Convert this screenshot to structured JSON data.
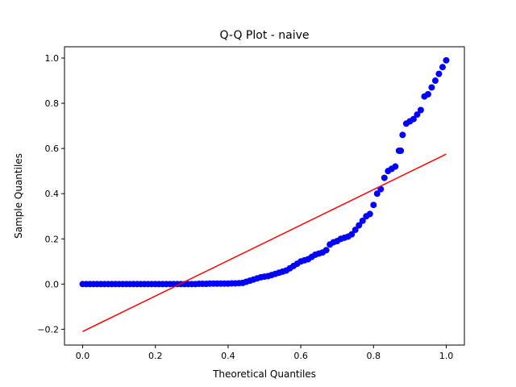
{
  "chart_data": {
    "type": "scatter",
    "title": "Q-Q Plot - naive",
    "xlabel": "Theoretical Quantiles",
    "ylabel": "Sample Quantiles",
    "xlim": [
      -0.05,
      1.05
    ],
    "ylim": [
      -0.27,
      1.05
    ],
    "x_ticks": [
      0.0,
      0.2,
      0.4,
      0.6,
      0.8,
      1.0
    ],
    "x_tick_labels": [
      "0.0",
      "0.2",
      "0.4",
      "0.6",
      "0.8",
      "1.0"
    ],
    "y_ticks": [
      -0.2,
      0.0,
      0.2,
      0.4,
      0.6,
      0.8,
      1.0
    ],
    "y_tick_labels": [
      "−0.2",
      "0.0",
      "0.2",
      "0.4",
      "0.6",
      "0.8",
      "1.0"
    ],
    "grid": false,
    "series": [
      {
        "kind": "points",
        "color": "#0000ff",
        "points": [
          [
            0.0,
            0.0
          ],
          [
            0.01,
            0.0
          ],
          [
            0.02,
            0.0
          ],
          [
            0.03,
            0.0
          ],
          [
            0.04,
            0.0
          ],
          [
            0.05,
            0.0
          ],
          [
            0.06,
            0.0
          ],
          [
            0.07,
            0.0
          ],
          [
            0.08,
            0.0
          ],
          [
            0.09,
            0.0
          ],
          [
            0.1,
            0.0
          ],
          [
            0.11,
            0.0
          ],
          [
            0.12,
            0.0
          ],
          [
            0.13,
            0.0
          ],
          [
            0.14,
            0.0
          ],
          [
            0.15,
            0.0
          ],
          [
            0.16,
            0.0
          ],
          [
            0.17,
            0.0
          ],
          [
            0.18,
            0.0
          ],
          [
            0.19,
            0.0
          ],
          [
            0.2,
            0.0
          ],
          [
            0.21,
            0.0
          ],
          [
            0.22,
            0.0
          ],
          [
            0.23,
            0.0
          ],
          [
            0.24,
            0.0
          ],
          [
            0.25,
            0.0
          ],
          [
            0.26,
            0.0
          ],
          [
            0.27,
            0.0
          ],
          [
            0.28,
            0.0
          ],
          [
            0.29,
            0.0
          ],
          [
            0.3,
            0.0
          ],
          [
            0.31,
            0.0
          ],
          [
            0.32,
            0.001
          ],
          [
            0.33,
            0.001
          ],
          [
            0.34,
            0.001
          ],
          [
            0.35,
            0.002
          ],
          [
            0.36,
            0.002
          ],
          [
            0.37,
            0.002
          ],
          [
            0.38,
            0.002
          ],
          [
            0.39,
            0.002
          ],
          [
            0.4,
            0.002
          ],
          [
            0.41,
            0.003
          ],
          [
            0.42,
            0.003
          ],
          [
            0.43,
            0.004
          ],
          [
            0.44,
            0.005
          ],
          [
            0.45,
            0.01
          ],
          [
            0.46,
            0.015
          ],
          [
            0.47,
            0.02
          ],
          [
            0.48,
            0.025
          ],
          [
            0.49,
            0.03
          ],
          [
            0.5,
            0.033
          ],
          [
            0.51,
            0.035
          ],
          [
            0.52,
            0.04
          ],
          [
            0.53,
            0.045
          ],
          [
            0.54,
            0.05
          ],
          [
            0.55,
            0.055
          ],
          [
            0.56,
            0.06
          ],
          [
            0.57,
            0.07
          ],
          [
            0.58,
            0.08
          ],
          [
            0.59,
            0.09
          ],
          [
            0.6,
            0.1
          ],
          [
            0.61,
            0.105
          ],
          [
            0.62,
            0.11
          ],
          [
            0.63,
            0.12
          ],
          [
            0.64,
            0.13
          ],
          [
            0.65,
            0.135
          ],
          [
            0.66,
            0.14
          ],
          [
            0.67,
            0.15
          ],
          [
            0.68,
            0.175
          ],
          [
            0.69,
            0.185
          ],
          [
            0.7,
            0.19
          ],
          [
            0.71,
            0.2
          ],
          [
            0.72,
            0.205
          ],
          [
            0.73,
            0.21
          ],
          [
            0.74,
            0.22
          ],
          [
            0.75,
            0.24
          ],
          [
            0.76,
            0.26
          ],
          [
            0.77,
            0.28
          ],
          [
            0.78,
            0.3
          ],
          [
            0.79,
            0.31
          ],
          [
            0.8,
            0.35
          ],
          [
            0.81,
            0.4
          ],
          [
            0.82,
            0.42
          ],
          [
            0.83,
            0.47
          ],
          [
            0.84,
            0.5
          ],
          [
            0.85,
            0.51
          ],
          [
            0.86,
            0.52
          ],
          [
            0.87,
            0.59
          ],
          [
            0.875,
            0.59
          ],
          [
            0.88,
            0.66
          ],
          [
            0.89,
            0.71
          ],
          [
            0.9,
            0.72
          ],
          [
            0.91,
            0.73
          ],
          [
            0.92,
            0.75
          ],
          [
            0.93,
            0.77
          ],
          [
            0.94,
            0.83
          ],
          [
            0.95,
            0.84
          ],
          [
            0.96,
            0.87
          ],
          [
            0.97,
            0.9
          ],
          [
            0.98,
            0.93
          ],
          [
            0.99,
            0.96
          ],
          [
            1.0,
            0.99
          ]
        ]
      },
      {
        "kind": "line",
        "color": "#ff0000",
        "points": [
          [
            0.0,
            -0.21
          ],
          [
            1.0,
            0.575
          ]
        ]
      }
    ]
  }
}
